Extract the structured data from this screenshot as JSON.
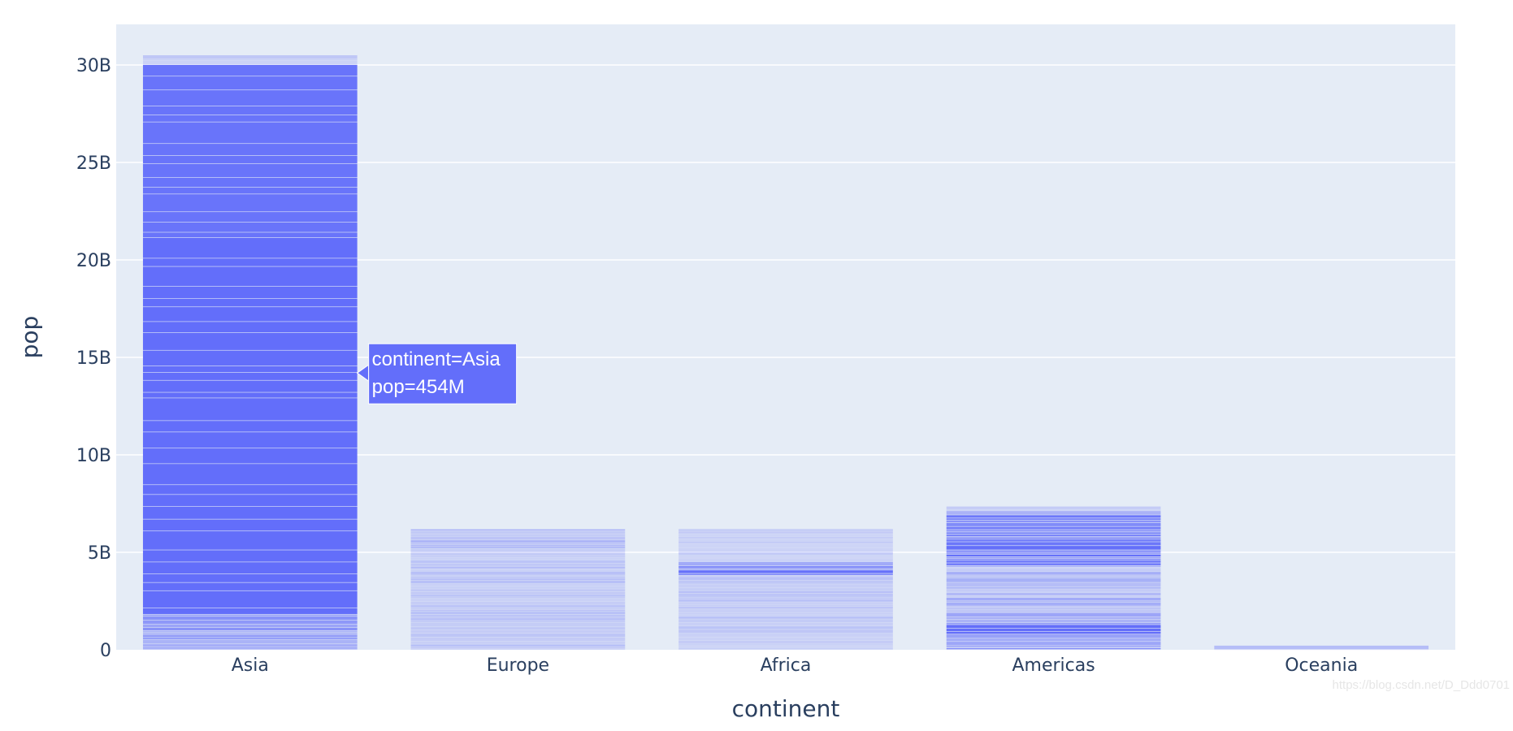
{
  "chart_data": {
    "type": "bar",
    "barmode": "stacked",
    "xlabel": "continent",
    "ylabel": "pop",
    "categories": [
      "Asia",
      "Europe",
      "Africa",
      "Americas",
      "Oceania"
    ],
    "values": [
      30500000000,
      6180000000,
      6190000000,
      7350000000,
      212000000
    ],
    "ylim": [
      0,
      32000000000
    ],
    "yticks": [
      {
        "value": 0,
        "label": "0"
      },
      {
        "value": 5000000000,
        "label": "5B"
      },
      {
        "value": 10000000000,
        "label": "10B"
      },
      {
        "value": 15000000000,
        "label": "15B"
      },
      {
        "value": 20000000000,
        "label": "20B"
      },
      {
        "value": 25000000000,
        "label": "25B"
      },
      {
        "value": 30000000000,
        "label": "30B"
      }
    ],
    "grid": true,
    "colors": {
      "bar": "#636efa",
      "plot_bg": "#e5ecf6",
      "grid": "#ffffff",
      "text": "#2a3f5f"
    },
    "tooltip": {
      "category": "Asia",
      "value": 14200000000,
      "line1": "continent=Asia",
      "line2": "pop=454M"
    }
  },
  "watermark": "https://blog.csdn.net/D_Ddd0701"
}
